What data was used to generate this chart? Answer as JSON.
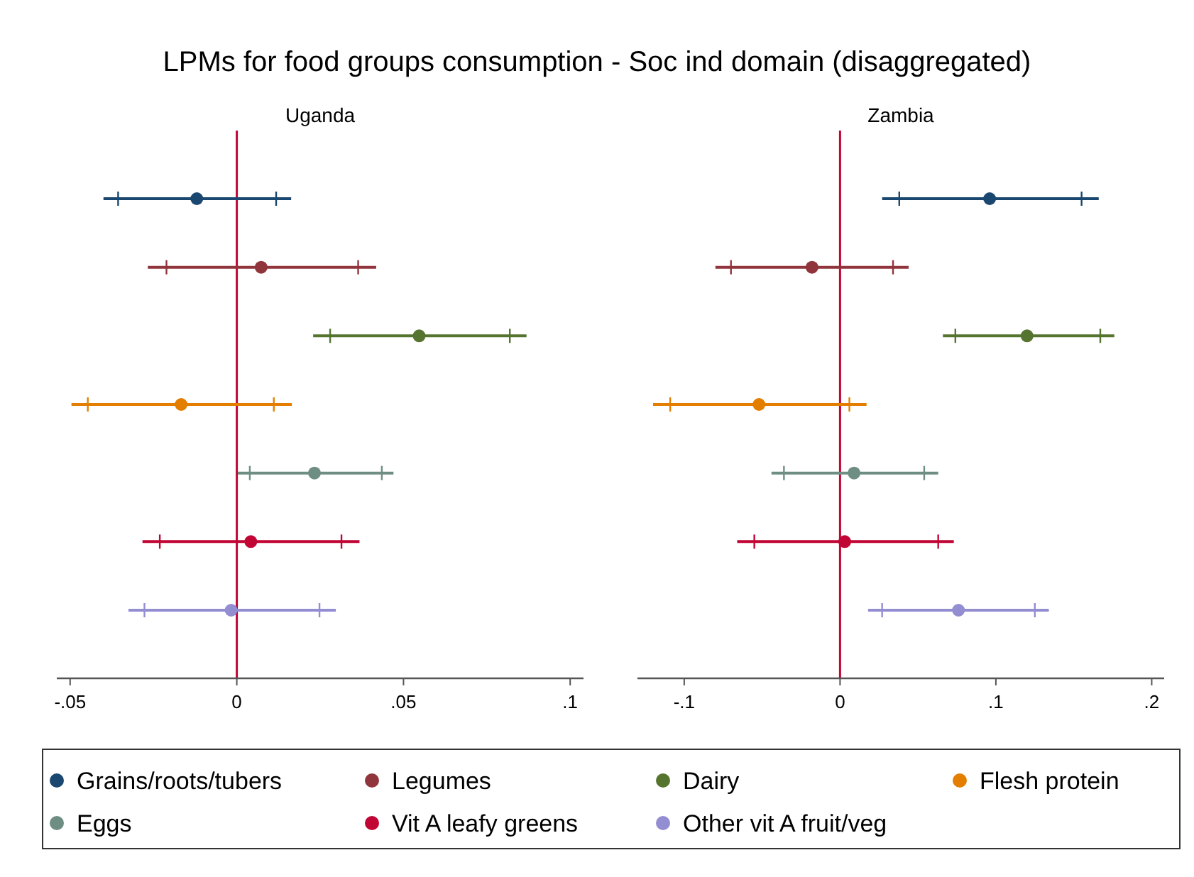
{
  "chart_data": [
    {
      "type": "box",
      "title": "LPMs for food groups consumption - Soc ind domain (disaggregated)",
      "subtitle": "Uganda",
      "orientation": "horizontal",
      "categories": [
        null,
        null,
        null,
        null,
        null,
        null,
        null
      ],
      "xlim": [
        -0.054,
        0.104
      ],
      "xticks": [
        {
          "value": -0.05,
          "label": "-.05"
        },
        0,
        {
          "value": 0.05,
          "label": ".05"
        },
        {
          "value": 0.1,
          "label": ".1"
        }
      ],
      "tick_labels": "x",
      "grid": false,
      "legend": "bottom",
      "ref_lines": [
        {
          "axis": "x",
          "value": 0,
          "color": "#c10534"
        }
      ],
      "series": [
        {
          "name": "Grains/roots/tubers",
          "color": "#1a476f",
          "boxes": [
            {
              "low": -0.04,
              "q1": -0.0356,
              "median": -0.012,
              "q3": 0.0118,
              "high": 0.0163
            },
            null,
            null,
            null,
            null,
            null,
            null
          ]
        },
        {
          "name": "Legumes",
          "color": "#90353b",
          "boxes": [
            null,
            {
              "low": -0.0267,
              "q1": -0.0211,
              "median": 0.0073,
              "q3": 0.0364,
              "high": 0.0418
            },
            null,
            null,
            null,
            null,
            null
          ]
        },
        {
          "name": "Dairy",
          "color": "#55752f",
          "boxes": [
            null,
            null,
            {
              "low": 0.0229,
              "q1": 0.028,
              "median": 0.0547,
              "q3": 0.0819,
              "high": 0.0869
            },
            null,
            null,
            null,
            null
          ]
        },
        {
          "name": "Flesh protein",
          "color": "#e37e00",
          "boxes": [
            null,
            null,
            null,
            {
              "low": -0.0496,
              "q1": -0.0447,
              "median": -0.0167,
              "q3": 0.0111,
              "high": 0.0165
            },
            null,
            null,
            null
          ]
        },
        {
          "name": "Eggs",
          "color": "#6e8e84",
          "boxes": [
            null,
            null,
            null,
            null,
            {
              "low": 0.0003,
              "q1": 0.0039,
              "median": 0.0233,
              "q3": 0.0435,
              "high": 0.047
            },
            null,
            null
          ]
        },
        {
          "name": "Vit A leafy greens",
          "color": "#c10534",
          "boxes": [
            null,
            null,
            null,
            null,
            null,
            {
              "low": -0.0283,
              "q1": -0.0231,
              "median": 0.0042,
              "q3": 0.0314,
              "high": 0.0368
            },
            null
          ]
        },
        {
          "name": "Other vit A fruit/veg",
          "color": "#938dd2",
          "boxes": [
            null,
            null,
            null,
            null,
            null,
            null,
            {
              "low": -0.0325,
              "q1": -0.0277,
              "median": -0.0017,
              "q3": 0.0248,
              "high": 0.0297
            }
          ]
        }
      ]
    },
    {
      "type": "box",
      "subtitle": "Zambia",
      "orientation": "horizontal",
      "categories": [
        null,
        null,
        null,
        null,
        null,
        null,
        null
      ],
      "xlim": [
        -0.13,
        0.208
      ],
      "xticks": [
        {
          "value": -0.1,
          "label": "-.1"
        },
        0,
        {
          "value": 0.1,
          "label": ".1"
        },
        {
          "value": 0.2,
          "label": ".2"
        }
      ],
      "tick_labels": "x",
      "grid": false,
      "ref_lines": [
        {
          "axis": "x",
          "value": 0,
          "color": "#c10534"
        }
      ],
      "series": [
        {
          "color": "#1a476f",
          "boxes": [
            {
              "low": 0.027,
              "q1": 0.038,
              "median": 0.096,
              "q3": 0.155,
              "high": 0.166
            },
            null,
            null,
            null,
            null,
            null,
            null
          ]
        },
        {
          "color": "#90353b",
          "boxes": [
            null,
            {
              "low": -0.08,
              "q1": -0.07,
              "median": -0.018,
              "q3": 0.034,
              "high": 0.044
            },
            null,
            null,
            null,
            null,
            null
          ]
        },
        {
          "color": "#55752f",
          "boxes": [
            null,
            null,
            {
              "low": 0.066,
              "q1": 0.074,
              "median": 0.12,
              "q3": 0.167,
              "high": 0.176
            },
            null,
            null,
            null,
            null
          ]
        },
        {
          "color": "#e37e00",
          "boxes": [
            null,
            null,
            null,
            {
              "low": -0.12,
              "q1": -0.109,
              "median": -0.052,
              "q3": 0.006,
              "high": 0.017
            },
            null,
            null,
            null
          ]
        },
        {
          "color": "#6e8e84",
          "boxes": [
            null,
            null,
            null,
            null,
            {
              "low": -0.044,
              "q1": -0.036,
              "median": 0.009,
              "q3": 0.054,
              "high": 0.063
            },
            null,
            null
          ]
        },
        {
          "color": "#c10534",
          "boxes": [
            null,
            null,
            null,
            null,
            null,
            {
              "low": -0.066,
              "q1": -0.055,
              "median": 0.003,
              "q3": 0.063,
              "high": 0.073
            },
            null
          ]
        },
        {
          "color": "#938dd2",
          "boxes": [
            null,
            null,
            null,
            null,
            null,
            null,
            {
              "low": 0.018,
              "q1": 0.027,
              "median": 0.076,
              "q3": 0.125,
              "high": 0.134
            }
          ]
        }
      ]
    }
  ]
}
